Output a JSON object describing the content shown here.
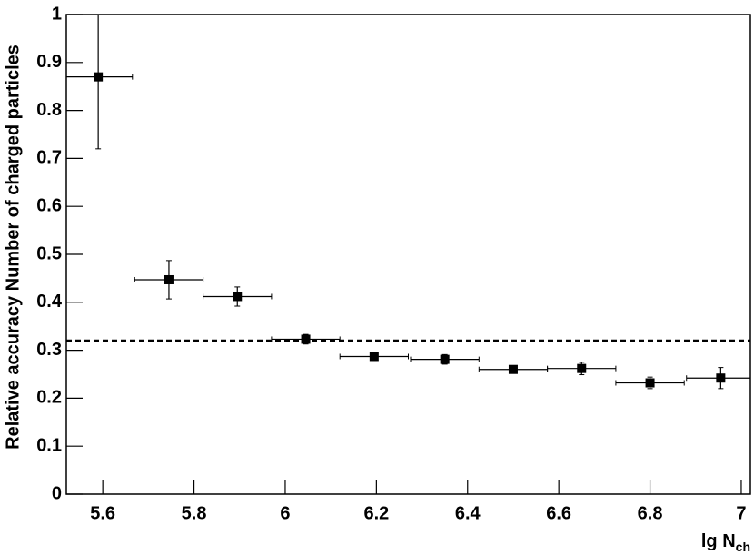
{
  "chart_data": {
    "type": "scatter",
    "y_label": "Relative accuracy Number of charged particles",
    "x_label": {
      "text": "lg N",
      "subscript": "ch"
    },
    "x": [
      5.59,
      5.745,
      5.895,
      6.045,
      6.195,
      6.35,
      6.5,
      6.65,
      6.8,
      6.955
    ],
    "xerr": [
      0.075,
      0.075,
      0.075,
      0.075,
      0.075,
      0.075,
      0.075,
      0.075,
      0.075,
      0.075
    ],
    "values": [
      0.87,
      0.447,
      0.412,
      0.323,
      0.287,
      0.281,
      0.26,
      0.262,
      0.232,
      0.242
    ],
    "errors": [
      0.15,
      0.04,
      0.02,
      0.01,
      0.008,
      0.01,
      0.008,
      0.013,
      0.012,
      0.022
    ],
    "color": "#000000",
    "reference_line": 0.32,
    "xlim": [
      5.52,
      7.02
    ],
    "xticks": [
      5.6,
      5.8,
      6,
      6.2,
      6.4,
      6.6,
      6.8,
      7
    ],
    "ylim": [
      0,
      1
    ],
    "yticks": [
      0,
      0.1,
      0.2,
      0.3,
      0.4,
      0.5,
      0.6,
      0.7,
      0.8,
      0.9,
      1
    ]
  }
}
